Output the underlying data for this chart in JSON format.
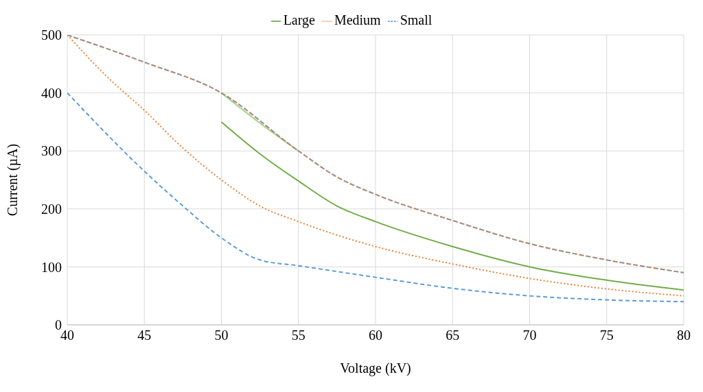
{
  "chart_data": {
    "type": "line",
    "xlabel": "Voltage (kV)",
    "ylabel": "Current (µA)",
    "xlim": [
      40,
      80
    ],
    "xticks": [
      40,
      45,
      50,
      55,
      60,
      65,
      70,
      75,
      80
    ],
    "ylim": [
      0,
      500
    ],
    "yticks": [
      0,
      100,
      200,
      300,
      400,
      500
    ],
    "grid": true,
    "legend": "top",
    "marker": "none",
    "series": [
      {
        "name": "Small",
        "color": "#5b9bd5",
        "line_style": "dashed",
        "x": [
          40,
          45,
          47.5,
          50,
          52.5,
          55,
          60,
          65,
          70,
          75,
          80
        ],
        "values": [
          400,
          265,
          205,
          150,
          112,
          102,
          82,
          63,
          50,
          43,
          40
        ]
      },
      {
        "name": "Medium",
        "color": "#ed7d31",
        "line_style": "dotted",
        "x": [
          40,
          42.5,
          45,
          47.5,
          50,
          52.5,
          55,
          60,
          65,
          70,
          75,
          80
        ],
        "values": [
          500,
          430,
          370,
          305,
          250,
          205,
          178,
          135,
          105,
          80,
          62,
          50
        ]
      },
      {
        "name": "Large",
        "color": "#70ad47",
        "line_style": "solid",
        "x": [
          50,
          52.5,
          55,
          57.5,
          60,
          65,
          70,
          75,
          80
        ],
        "values": [
          350,
          295,
          248,
          205,
          178,
          135,
          100,
          77,
          60
        ]
      },
      {
        "color": "#a9d18e",
        "line_style": "solid",
        "x": [
          50,
          52.5,
          55
        ],
        "values": [
          400,
          348,
          300
        ]
      },
      {
        "color": "#5b9bd5",
        "line_style": "dashed",
        "x": [
          40,
          45,
          50,
          55,
          57.5,
          60,
          65,
          70,
          75,
          80
        ],
        "values": [
          500,
          453,
          400,
          300,
          255,
          225,
          180,
          140,
          112,
          90
        ]
      },
      {
        "color": "#ed7d31",
        "line_style": "dotted",
        "x": [
          40,
          45,
          50,
          55,
          57.5,
          60,
          65,
          70,
          75,
          80
        ],
        "values": [
          500,
          453,
          400,
          300,
          255,
          225,
          180,
          140,
          112,
          90
        ]
      }
    ]
  }
}
